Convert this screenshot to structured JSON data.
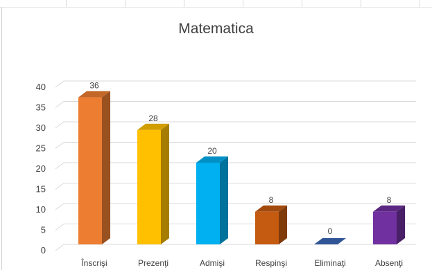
{
  "chart_data": {
    "type": "bar",
    "title": "Matematica",
    "categories": [
      "Înscrişi",
      "Prezenţi",
      "Admişi",
      "Respinşi",
      "Eliminaţi",
      "Absenţi"
    ],
    "values": [
      36,
      28,
      20,
      8,
      0,
      8
    ],
    "colors": [
      "#ED7D31",
      "#FFC000",
      "#00B0F0",
      "#C55A11",
      "#2F5597",
      "#7030A0"
    ],
    "yticks": [
      0,
      5,
      10,
      15,
      20,
      25,
      30,
      35,
      40
    ],
    "ylim": [
      0,
      40
    ],
    "grid": true,
    "style": "3d-column"
  }
}
